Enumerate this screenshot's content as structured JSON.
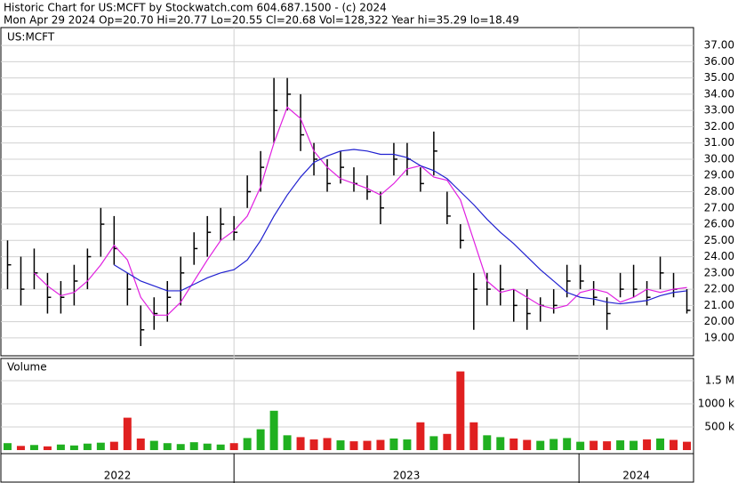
{
  "chart_data": {
    "type": "hlc",
    "title": "Historic Chart for US:MCFT by Stockwatch.com 604.687.1500 - (c) 2024",
    "subtitle": "Mon Apr 29 2024  Op=20.70  Hi=20.77  Lo=20.55  Cl=20.68  Vol=128,322  Year hi=35.29  lo=18.49",
    "symbol": "US:MCFT",
    "grid": true,
    "bar_color": "#000000",
    "xlim": [
      0,
      52
    ],
    "year_labels": [
      "2022",
      "2023",
      "2024"
    ],
    "year_starts": [
      17.5,
      43.4
    ],
    "ylim": [
      17.9,
      38.1
    ],
    "yticks": [
      {
        "value": 19,
        "label": "19.00"
      },
      {
        "value": 20,
        "label": "20.00"
      },
      {
        "value": 21,
        "label": "21.00"
      },
      {
        "value": 22,
        "label": "22.00"
      },
      {
        "value": 23,
        "label": "23.00"
      },
      {
        "value": 24,
        "label": "24.00"
      },
      {
        "value": 25,
        "label": "25.00"
      },
      {
        "value": 26,
        "label": "26.00"
      },
      {
        "value": 27,
        "label": "27.00"
      },
      {
        "value": 28,
        "label": "28.00"
      },
      {
        "value": 29,
        "label": "29.00"
      },
      {
        "value": 30,
        "label": "30.00"
      },
      {
        "value": 31,
        "label": "31.00"
      },
      {
        "value": 32,
        "label": "32.00"
      },
      {
        "value": 33,
        "label": "33.00"
      },
      {
        "value": 34,
        "label": "34.00"
      },
      {
        "value": 35,
        "label": "35.00"
      },
      {
        "value": 36,
        "label": "36.00"
      },
      {
        "value": 37,
        "label": "37.00"
      }
    ],
    "high": [
      25,
      24,
      24.5,
      23,
      22.5,
      23.5,
      24.5,
      27,
      26.5,
      23,
      21,
      21.5,
      22.5,
      24,
      25.5,
      26.5,
      27,
      26.5,
      29,
      30.5,
      35,
      35,
      34,
      31,
      30,
      30.5,
      29.5,
      29,
      28,
      31,
      31,
      29.5,
      31.7,
      28,
      26,
      23,
      23,
      23.5,
      22,
      22,
      21.5,
      22,
      23.5,
      23.5,
      22.5,
      21.5,
      23,
      23.5,
      22.5,
      24,
      23,
      22
    ],
    "low": [
      22,
      21,
      22,
      20.5,
      20.5,
      21,
      22,
      24,
      23.5,
      21,
      18.5,
      19.5,
      20,
      21,
      23.5,
      24,
      25,
      25,
      27,
      28,
      31,
      33,
      30.5,
      29,
      28,
      28.5,
      28,
      27.5,
      26,
      29,
      29,
      28,
      29,
      26,
      24.5,
      19.5,
      21,
      21,
      20,
      19.5,
      20,
      20.5,
      21.5,
      22,
      21,
      19.5,
      21.5,
      21.5,
      21,
      22,
      21.5,
      20.5
    ],
    "close": [
      23.5,
      22,
      23,
      21.5,
      21.5,
      22.5,
      24,
      26,
      24.5,
      22,
      19.5,
      20.5,
      21.5,
      23,
      24.5,
      25.5,
      26,
      25.5,
      28,
      29.5,
      33,
      34,
      31.5,
      30,
      28.5,
      29.5,
      28.5,
      28,
      27,
      30,
      30,
      28.5,
      30.5,
      26.5,
      25,
      22,
      22,
      22,
      21,
      20.5,
      21,
      21,
      22.5,
      22.5,
      21.5,
      20.5,
      22,
      22,
      21.5,
      23,
      22,
      20.7
    ],
    "ma_short": {
      "color": "#e020e0",
      "values": [
        null,
        null,
        23,
        22.2,
        21.6,
        21.8,
        22.5,
        23.5,
        24.7,
        23.8,
        21.5,
        20.4,
        20.4,
        21.2,
        22.5,
        23.8,
        25,
        25.6,
        26.5,
        28.3,
        31,
        33.2,
        32.5,
        30.5,
        29.5,
        28.8,
        28.5,
        28.2,
        27.8,
        28.5,
        29.4,
        29.6,
        28.9,
        28.7,
        27.5,
        25,
        22.5,
        21.8,
        22,
        21.5,
        21,
        20.8,
        21,
        21.8,
        22,
        21.8,
        21.2,
        21.5,
        22,
        21.8,
        22,
        22.1
      ]
    },
    "ma_long": {
      "color": "#2020d0",
      "values": [
        null,
        null,
        null,
        null,
        null,
        null,
        null,
        null,
        23.5,
        23,
        22.5,
        22.2,
        21.9,
        21.9,
        22.3,
        22.7,
        23,
        23.2,
        23.8,
        25,
        26.5,
        27.8,
        28.9,
        29.8,
        30.2,
        30.5,
        30.6,
        30.5,
        30.3,
        30.3,
        30.1,
        29.6,
        29.3,
        28.8,
        28,
        27.2,
        26.3,
        25.5,
        24.8,
        24,
        23.2,
        22.5,
        21.8,
        21.5,
        21.4,
        21.2,
        21.1,
        21.2,
        21.3,
        21.6,
        21.8,
        21.9
      ]
    },
    "volume": {
      "label": "Volume",
      "up_color": "#20b020",
      "down_color": "#e02020",
      "ylim": [
        0,
        1980000
      ],
      "yticks": [
        {
          "value": 500000,
          "label": "500 k"
        },
        {
          "value": 1000000,
          "label": "1000 k"
        },
        {
          "value": 1500000,
          "label": "1.5 M"
        }
      ],
      "values": [
        150000,
        90000,
        110000,
        80000,
        120000,
        100000,
        140000,
        160000,
        180000,
        700000,
        250000,
        200000,
        150000,
        130000,
        170000,
        140000,
        120000,
        150000,
        260000,
        450000,
        850000,
        320000,
        280000,
        230000,
        260000,
        210000,
        190000,
        200000,
        220000,
        250000,
        230000,
        600000,
        300000,
        350000,
        1700000,
        600000,
        320000,
        280000,
        250000,
        220000,
        200000,
        240000,
        260000,
        180000,
        200000,
        190000,
        210000,
        200000,
        230000,
        250000,
        220000,
        180000
      ]
    }
  }
}
